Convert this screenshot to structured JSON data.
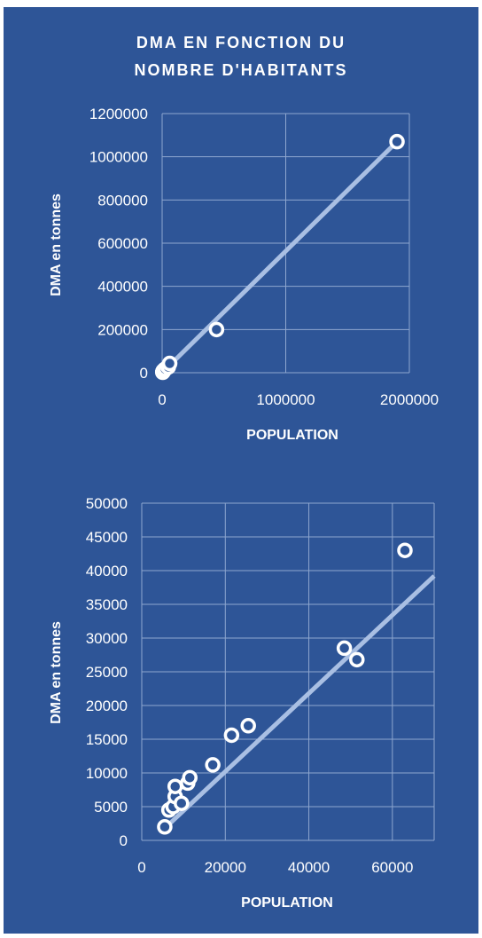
{
  "chart_data": [
    {
      "type": "scatter",
      "title": "DMA EN FONCTION DU NOMBRE D'HABITANTS",
      "title_lines": [
        "DMA EN FONCTION DU",
        "NOMBRE D'HABITANTS"
      ],
      "xlabel": "POPULATION",
      "ylabel": "DMA en  tonnes",
      "xlim": [
        0,
        2000000
      ],
      "ylim": [
        0,
        1200000
      ],
      "xticks": [
        0,
        1000000,
        2000000
      ],
      "yticks": [
        0,
        200000,
        400000,
        600000,
        800000,
        1000000,
        1200000
      ],
      "xtick_labels": [
        "0",
        "1000000",
        "2000000"
      ],
      "ytick_labels": [
        "0",
        "200000",
        "400000",
        "600000",
        "800000",
        "1000000",
        "1200000"
      ],
      "grid": true,
      "legend": "none",
      "trendline": {
        "x": [
          0,
          1900000
        ],
        "y": [
          0,
          1070000
        ]
      },
      "points": [
        {
          "x": 5000,
          "y": 2000
        },
        {
          "x": 6000,
          "y": 4500
        },
        {
          "x": 7000,
          "y": 6000
        },
        {
          "x": 8000,
          "y": 8000
        },
        {
          "x": 10000,
          "y": 5500
        },
        {
          "x": 11000,
          "y": 9000
        },
        {
          "x": 16000,
          "y": 11000
        },
        {
          "x": 21000,
          "y": 15500
        },
        {
          "x": 25000,
          "y": 17000
        },
        {
          "x": 47000,
          "y": 28500
        },
        {
          "x": 50000,
          "y": 26500
        },
        {
          "x": 61000,
          "y": 43000
        },
        {
          "x": 440000,
          "y": 200000
        },
        {
          "x": 1900000,
          "y": 1070000
        }
      ]
    },
    {
      "type": "scatter",
      "title": "",
      "xlabel": "POPULATION",
      "ylabel": "DMA en tonnes",
      "xlim": [
        0,
        70000
      ],
      "ylim": [
        0,
        50000
      ],
      "xticks": [
        0,
        20000,
        40000,
        60000
      ],
      "yticks": [
        0,
        5000,
        10000,
        15000,
        20000,
        25000,
        30000,
        35000,
        40000,
        45000,
        50000
      ],
      "xtick_labels": [
        "0",
        "20000",
        "40000",
        "60000"
      ],
      "ytick_labels": [
        "0",
        "5000",
        "10000",
        "15000",
        "20000",
        "25000",
        "30000",
        "35000",
        "40000",
        "45000",
        "50000"
      ],
      "grid": true,
      "legend": "none",
      "trendline": {
        "x": [
          5000,
          70000
        ],
        "y": [
          1500,
          39200
        ]
      },
      "points": [
        {
          "x": 5500,
          "y": 2000
        },
        {
          "x": 6500,
          "y": 4500
        },
        {
          "x": 7500,
          "y": 5000
        },
        {
          "x": 8000,
          "y": 6500
        },
        {
          "x": 8000,
          "y": 8000
        },
        {
          "x": 9500,
          "y": 5500
        },
        {
          "x": 11000,
          "y": 8500
        },
        {
          "x": 11500,
          "y": 9300
        },
        {
          "x": 17000,
          "y": 11200
        },
        {
          "x": 21500,
          "y": 15600
        },
        {
          "x": 25500,
          "y": 17000
        },
        {
          "x": 48500,
          "y": 28500
        },
        {
          "x": 51500,
          "y": 26800
        },
        {
          "x": 63000,
          "y": 43000
        }
      ]
    }
  ]
}
